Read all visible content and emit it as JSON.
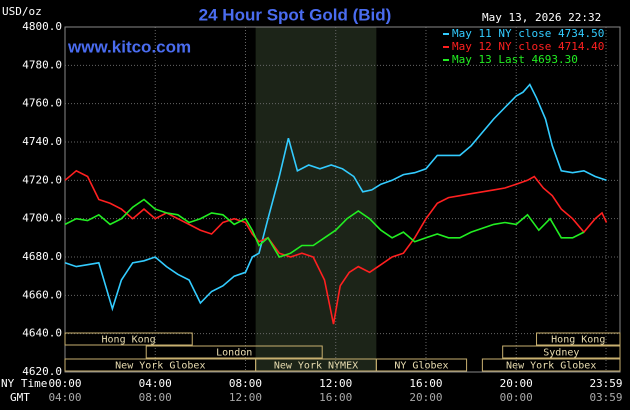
{
  "chart_data": {
    "type": "line",
    "title": "24 Hour Spot Gold (Bid)",
    "y_label": "USD/oz",
    "timestamp": "May 13, 2026 22:32",
    "watermark": "www.kitco.com",
    "x_row_labels": [
      "NY Time",
      "GMT"
    ],
    "xlim": [
      0,
      24.6
    ],
    "ylim": [
      4620,
      4800
    ],
    "yticks": [
      {
        "value": 4620,
        "label": "4620.0"
      },
      {
        "value": 4640,
        "label": "4640.0"
      },
      {
        "value": 4660,
        "label": "4660.0"
      },
      {
        "value": 4680,
        "label": "4680.0"
      },
      {
        "value": 4700,
        "label": "4700.0"
      },
      {
        "value": 4720,
        "label": "4720.0"
      },
      {
        "value": 4740,
        "label": "4740.0"
      },
      {
        "value": 4760,
        "label": "4760.0"
      },
      {
        "value": 4780,
        "label": "4780.0"
      },
      {
        "value": 4800,
        "label": "4800.0"
      }
    ],
    "xticks": [
      {
        "value": 0,
        "label": "00:00"
      },
      {
        "value": 4,
        "label": "04:00"
      },
      {
        "value": 8,
        "label": "08:00"
      },
      {
        "value": 12,
        "label": "12:00"
      },
      {
        "value": 16,
        "label": "16:00"
      },
      {
        "value": 20,
        "label": "20:00"
      },
      {
        "value": 23.98,
        "label": "23:59"
      }
    ],
    "gmt_tick_labels": [
      "04:00",
      "08:00",
      "12:00",
      "16:00",
      "20:00",
      "00:00",
      "03:59"
    ],
    "grid": true,
    "sessions": [
      {
        "name": "Hong Kong",
        "start": 0,
        "end": 5.64,
        "row": 0
      },
      {
        "name": "London",
        "start": 3.6,
        "end": 11.4,
        "row": 1
      },
      {
        "name": "New York Globex",
        "start": 0,
        "end": 8.45,
        "row": 2
      },
      {
        "name": "New York NYMEX",
        "start": 8.45,
        "end": 13.8,
        "row": 2,
        "highlight": true
      },
      {
        "name": "NY Globex",
        "start": 13.8,
        "end": 17.8,
        "row": 2
      },
      {
        "name": "Hong Kong",
        "start": 20.9,
        "end": 24.6,
        "row": 0
      },
      {
        "name": "Sydney",
        "start": 19.4,
        "end": 24.6,
        "row": 1
      },
      {
        "name": "New York Globex",
        "start": 18.5,
        "end": 24.6,
        "row": 2
      }
    ],
    "series": [
      {
        "name": "May 11 NY close 4734.50",
        "color": "#33ccff",
        "x": [
          0,
          0.5,
          1,
          1.5,
          2.1,
          2.5,
          3,
          3.5,
          4,
          4.5,
          5,
          5.5,
          6,
          6.5,
          7,
          7.5,
          8,
          8.3,
          8.6,
          9,
          9.5,
          9.9,
          10.3,
          10.8,
          11.3,
          11.8,
          12.3,
          12.8,
          13.2,
          13.6,
          14,
          14.5,
          15,
          15.5,
          16,
          16.5,
          17,
          17.5,
          18,
          18.5,
          19,
          19.5,
          20,
          20.3,
          20.6,
          20.9,
          21.3,
          21.6,
          22,
          22.5,
          23,
          23.5,
          24
        ],
        "values": [
          4677,
          4675,
          4676,
          4677,
          4653,
          4668,
          4677,
          4678,
          4680,
          4675,
          4671,
          4668,
          4656,
          4662,
          4665,
          4670,
          4672,
          4680,
          4682,
          4700,
          4722,
          4742,
          4725,
          4728,
          4726,
          4728,
          4726,
          4722,
          4714,
          4715,
          4718,
          4720,
          4723,
          4724,
          4726,
          4733,
          4733,
          4733,
          4738,
          4745,
          4752,
          4758,
          4764,
          4766,
          4770,
          4763,
          4752,
          4738,
          4725,
          4724,
          4725,
          4722,
          4720
        ]
      },
      {
        "name": "May 12 NY close 4714.40",
        "color": "#ff2020",
        "x": [
          0,
          0.5,
          1,
          1.5,
          2,
          2.5,
          3,
          3.5,
          4,
          4.5,
          5,
          5.5,
          6,
          6.5,
          7,
          7.5,
          8,
          8.3,
          8.6,
          9,
          9.5,
          10,
          10.5,
          11,
          11.5,
          11.9,
          12.2,
          12.6,
          13,
          13.5,
          14,
          14.5,
          15,
          15.5,
          16,
          16.5,
          17,
          17.5,
          18,
          18.5,
          19,
          19.5,
          20,
          20.5,
          20.8,
          21.2,
          21.6,
          22,
          22.5,
          23,
          23.5,
          23.8,
          24
        ],
        "values": [
          4720,
          4725,
          4722,
          4710,
          4708,
          4705,
          4700,
          4705,
          4700,
          4703,
          4700,
          4697,
          4694,
          4692,
          4698,
          4700,
          4698,
          4692,
          4688,
          4690,
          4682,
          4680,
          4682,
          4680,
          4668,
          4645,
          4665,
          4672,
          4675,
          4672,
          4676,
          4680,
          4682,
          4690,
          4700,
          4708,
          4711,
          4712,
          4713,
          4714,
          4715,
          4716,
          4718,
          4720,
          4722,
          4716,
          4712,
          4705,
          4700,
          4693,
          4700,
          4703,
          4698
        ]
      },
      {
        "name": "May 13 Last 4693.30",
        "color": "#22ee22",
        "x": [
          0,
          0.5,
          1,
          1.5,
          2,
          2.5,
          3,
          3.5,
          4,
          4.5,
          5,
          5.5,
          6,
          6.5,
          7,
          7.5,
          8,
          8.3,
          8.6,
          9,
          9.5,
          10,
          10.5,
          11,
          11.5,
          12,
          12.5,
          13,
          13.5,
          14,
          14.5,
          15,
          15.5,
          16,
          16.5,
          17,
          17.5,
          18,
          18.5,
          19,
          19.5,
          20,
          20.5,
          21,
          21.5,
          22,
          22.5,
          23
        ],
        "values": [
          4697,
          4700,
          4699,
          4702,
          4697,
          4700,
          4706,
          4710,
          4705,
          4703,
          4702,
          4698,
          4700,
          4703,
          4702,
          4697,
          4700,
          4694,
          4686,
          4690,
          4680,
          4682,
          4686,
          4686,
          4690,
          4694,
          4700,
          4704,
          4700,
          4694,
          4690,
          4693,
          4688,
          4690,
          4692,
          4690,
          4690,
          4693,
          4695,
          4697,
          4698,
          4697,
          4702,
          4694,
          4700,
          4690,
          4690,
          4693
        ]
      }
    ]
  }
}
